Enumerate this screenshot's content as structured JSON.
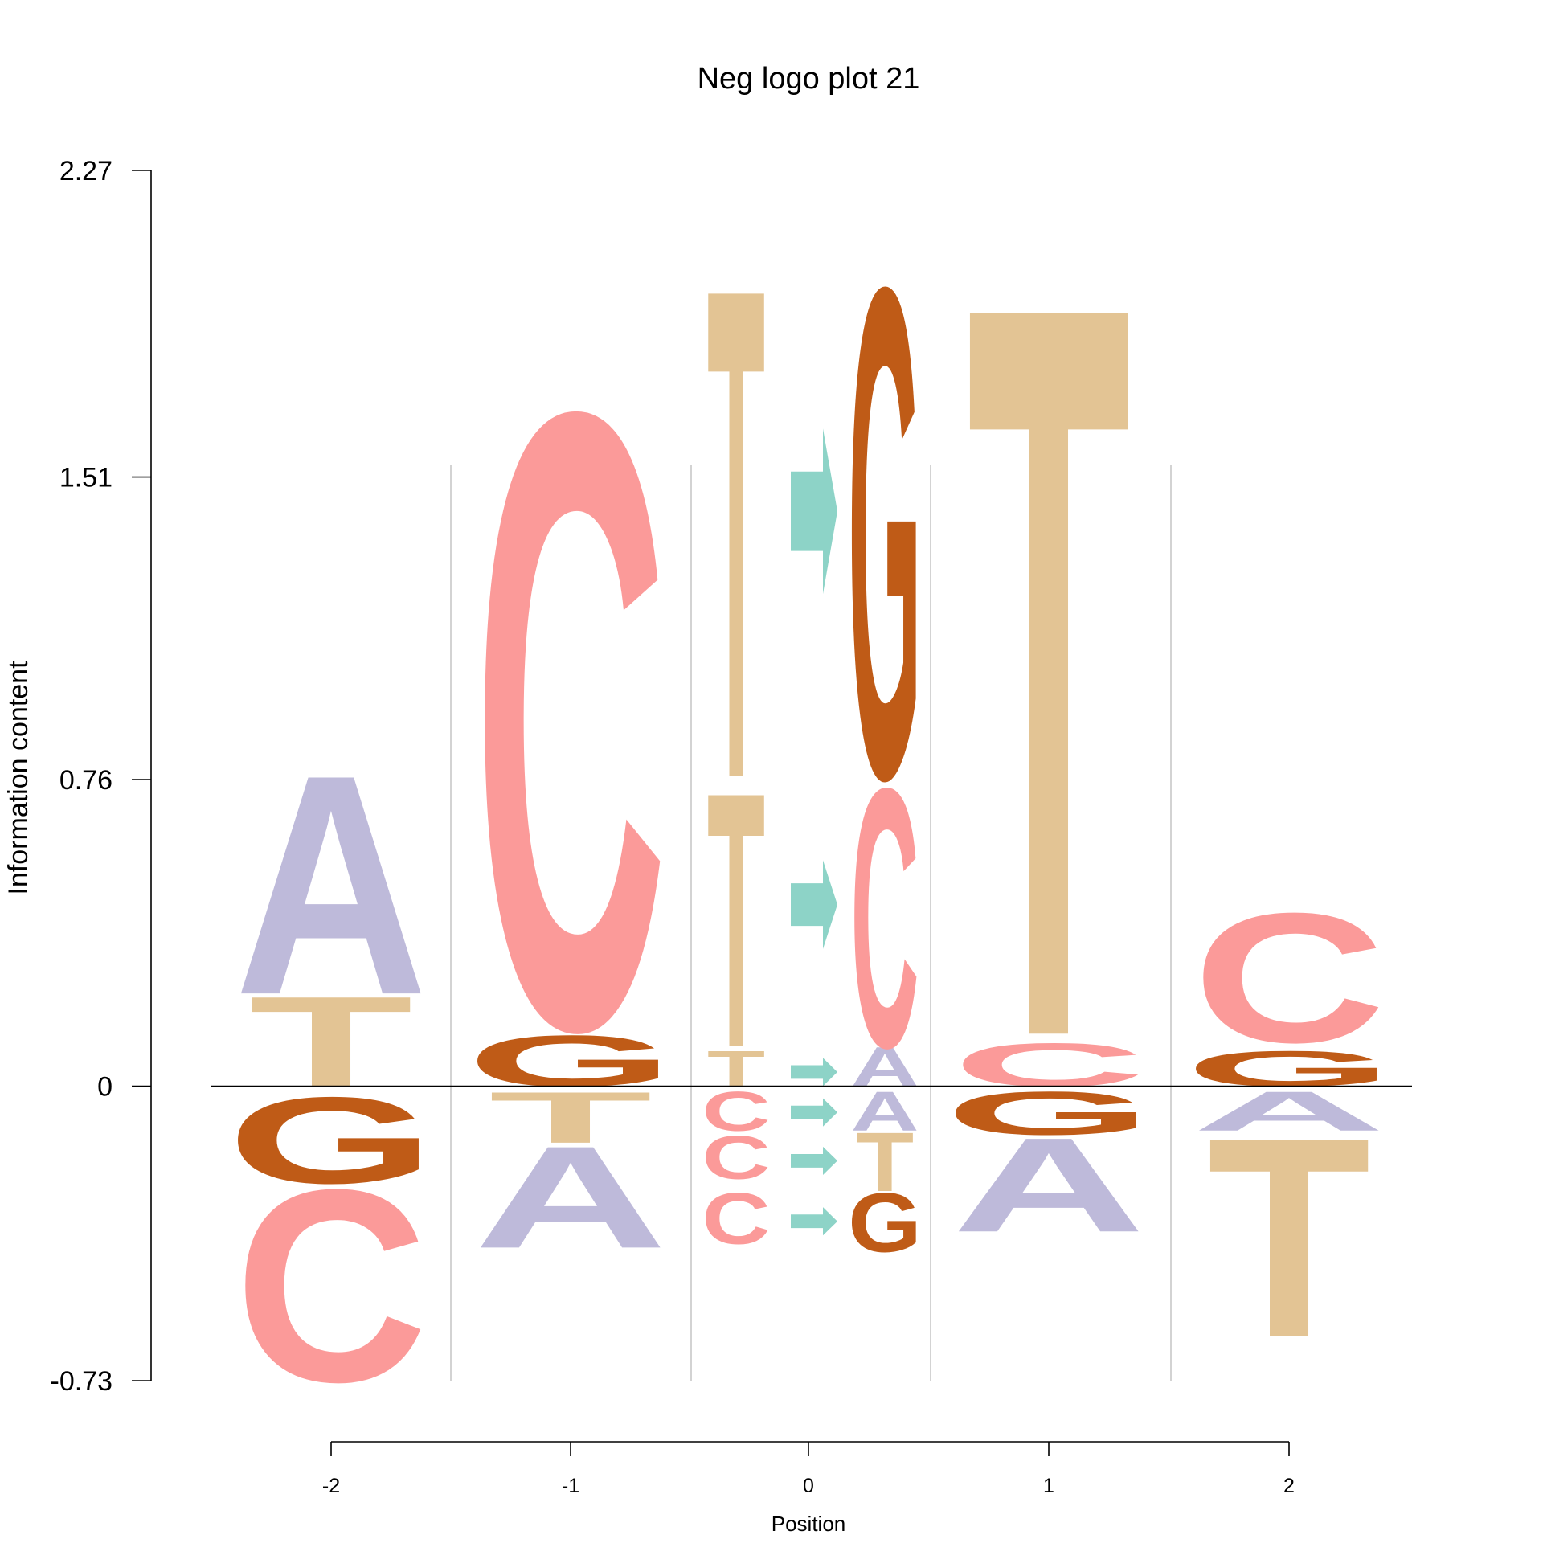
{
  "chart_data": {
    "type": "sequence-logo",
    "title": "Neg logo plot 21",
    "xlabel": "Position",
    "ylabel": "Information content",
    "ylim": [
      -0.73,
      2.27
    ],
    "yticks": [
      "2.27",
      "1.51",
      "0.76",
      "0",
      "-0.73"
    ],
    "ytick_values": [
      2.27,
      1.51,
      0.76,
      0,
      -0.73
    ],
    "xticks": [
      "-2",
      "-1",
      "0",
      "1",
      "2"
    ],
    "colors": {
      "A": "#bebada",
      "C": "#fb9a99",
      "G": "#bf5b17",
      "T": "#e3c494",
      "arrow": "#8dd3c7"
    },
    "positions": [
      {
        "x": "-2",
        "stacks": [
          {
            "letters": [
              {
                "letter": "T",
                "bottom": 0.0,
                "top": 0.23
              },
              {
                "letter": "A",
                "bottom": 0.23,
                "top": 0.79
              }
            ]
          },
          {
            "letters": [
              {
                "letter": "G",
                "bottom": -0.24,
                "top": -0.02
              },
              {
                "letter": "C",
                "bottom": -0.73,
                "top": -0.24
              }
            ]
          }
        ]
      },
      {
        "x": "-1",
        "stacks": [
          {
            "letters": [
              {
                "letter": "G",
                "bottom": 0.0,
                "top": 0.13
              },
              {
                "letter": "C",
                "bottom": 0.15,
                "top": 1.72
              }
            ]
          },
          {
            "letters": [
              {
                "letter": "T",
                "bottom": -0.14,
                "top": -0.01
              },
              {
                "letter": "A",
                "bottom": -0.4,
                "top": -0.14
              }
            ]
          }
        ]
      },
      {
        "x": "0",
        "stacks": [
          {
            "letters": [
              {
                "letter": "T",
                "bottom": 0.0,
                "top": 0.09
              },
              {
                "letter": "T",
                "bottom": 0.1,
                "top": 0.75
              },
              {
                "letter": "T",
                "bottom": 0.77,
                "top": 2.02
              }
            ]
          },
          {
            "letters": [
              {
                "letter": "C",
                "bottom": -0.11,
                "top": -0.01
              },
              {
                "letter": "C",
                "bottom": -0.23,
                "top": -0.12
              },
              {
                "letter": "C",
                "bottom": -0.39,
                "top": -0.26
              }
            ]
          },
          {
            "letters": [
              {
                "letter": "A",
                "bottom": 0.0,
                "top": 0.1
              },
              {
                "letter": "C",
                "bottom": 0.1,
                "top": 0.76
              },
              {
                "letter": "G",
                "bottom": 0.77,
                "top": 2.02
              }
            ]
          },
          {
            "letters": [
              {
                "letter": "A",
                "bottom": -0.11,
                "top": -0.01
              },
              {
                "letter": "T",
                "bottom": -0.26,
                "top": -0.11
              },
              {
                "letter": "G",
                "bottom": -0.41,
                "top": -0.26
              }
            ]
          }
        ],
        "arrows": [
          {
            "bottom": 0.0,
            "top": 0.07
          },
          {
            "bottom": 0.34,
            "top": 0.56
          },
          {
            "bottom": 1.22,
            "top": 1.63
          },
          {
            "bottom": -0.1,
            "top": -0.03
          },
          {
            "bottom": -0.22,
            "top": -0.15
          },
          {
            "bottom": -0.37,
            "top": -0.3
          }
        ]
      },
      {
        "x": "1",
        "stacks": [
          {
            "letters": [
              {
                "letter": "C",
                "bottom": 0.0,
                "top": 0.11
              },
              {
                "letter": "T",
                "bottom": 0.13,
                "top": 2.0
              }
            ]
          },
          {
            "letters": [
              {
                "letter": "G",
                "bottom": -0.12,
                "top": -0.01
              },
              {
                "letter": "A",
                "bottom": -0.36,
                "top": -0.12
              }
            ]
          }
        ]
      },
      {
        "x": "2",
        "stacks": [
          {
            "letters": [
              {
                "letter": "G",
                "bottom": 0.0,
                "top": 0.09
              },
              {
                "letter": "C",
                "bottom": 0.11,
                "top": 0.44
              }
            ]
          },
          {
            "letters": [
              {
                "letter": "A",
                "bottom": -0.11,
                "top": -0.01
              },
              {
                "letter": "T",
                "bottom": -0.62,
                "top": -0.11
              }
            ]
          }
        ]
      }
    ]
  }
}
